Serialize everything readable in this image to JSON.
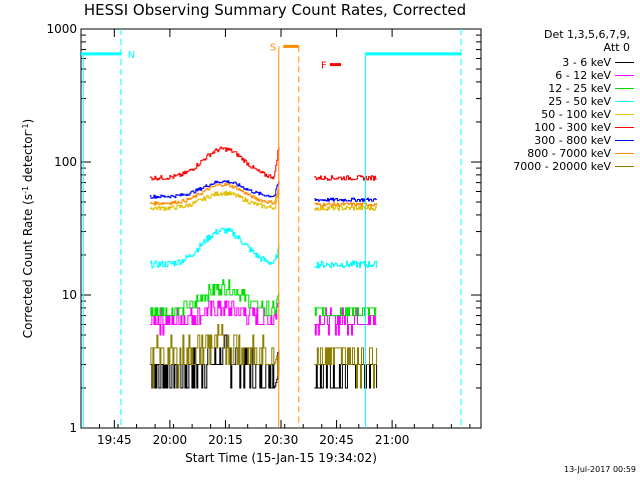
{
  "chart_data": {
    "type": "line",
    "title": "HESSI Observing Summary Count Rates, Corrected",
    "xlabel": "Start Time (15-Jan-15 19:34:02)",
    "ylabel_main": "Corrected Count Rate (s",
    "ylabel_sup1": "-1",
    "ylabel_mid": " detector",
    "ylabel_sup2": "-1",
    "ylabel_end": ")",
    "xlim_minutes": [
      19.6,
      21.4
    ],
    "ylim": [
      1,
      1000
    ],
    "y_scale": "log",
    "x_ticks": [
      {
        "label": "19:45",
        "value": 19.75
      },
      {
        "label": "20:00",
        "value": 20.0
      },
      {
        "label": "20:15",
        "value": 20.25
      },
      {
        "label": "20:30",
        "value": 20.5
      },
      {
        "label": "20:45",
        "value": 20.75
      },
      {
        "label": "21:00",
        "value": 21.0
      }
    ],
    "y_ticks": [
      {
        "label": "1",
        "value": 1
      },
      {
        "label": "10",
        "value": 10
      },
      {
        "label": "100",
        "value": 100
      },
      {
        "label": "1000",
        "value": 1000
      }
    ],
    "legend_head": [
      "Det 1,3,5,6,7,9,",
      "Att 0"
    ],
    "series": [
      {
        "name": "3 - 6 keV",
        "color": "#000000"
      },
      {
        "name": "6 - 12 keV",
        "color": "#ff00ff"
      },
      {
        "name": "12 - 25 keV",
        "color": "#00dd00"
      },
      {
        "name": "25 - 50 keV",
        "color": "#00ffff"
      },
      {
        "name": "50 - 100 keV",
        "color": "#e0c000"
      },
      {
        "name": "100 - 300 keV",
        "color": "#ff0000"
      },
      {
        "name": "300 - 800 keV",
        "color": "#0000ff"
      },
      {
        "name": "800 - 7000 keV",
        "color": "#ff8c00"
      },
      {
        "name": "7000 - 20000 keV",
        "color": "#8b7d00"
      }
    ],
    "annotations": {
      "night_label": "N",
      "saa_label": "S",
      "flare_label": "F",
      "night_color": "#00ffff",
      "saa_color": "#ff8c00",
      "flare_color": "#ff0000"
    },
    "levels": {
      "night_bar_level": 650
    }
  },
  "timestamp": "13-Jul-2017 00:59"
}
